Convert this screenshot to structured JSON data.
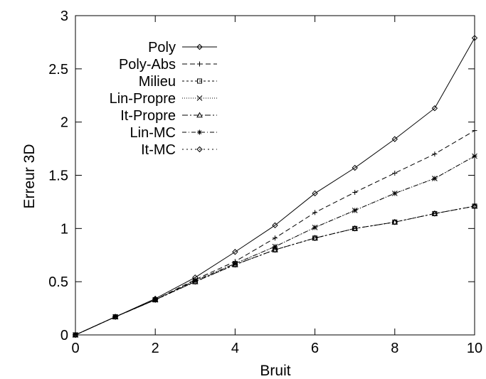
{
  "chart_data": {
    "type": "line",
    "title": "",
    "xlabel": "Bruit",
    "ylabel": "Erreur 3D",
    "xlim": [
      0,
      10
    ],
    "ylim": [
      0,
      3
    ],
    "xticks": [
      "0",
      "2",
      "4",
      "6",
      "8",
      "10"
    ],
    "yticks": [
      "0",
      "0.5",
      "1",
      "1.5",
      "2",
      "2.5",
      "3"
    ],
    "grid": false,
    "legend_position": "top-left",
    "x": [
      0,
      1,
      2,
      3,
      4,
      5,
      6,
      7,
      8,
      9,
      10
    ],
    "series": [
      {
        "name": "Poly",
        "marker": "diamond",
        "dash": "",
        "values": [
          0,
          0.17,
          0.34,
          0.54,
          0.78,
          1.03,
          1.33,
          1.57,
          1.84,
          2.13,
          2.79
        ]
      },
      {
        "name": "Poly-Abs",
        "marker": "plus",
        "dash": "7 4",
        "values": [
          0,
          0.17,
          0.33,
          0.52,
          0.69,
          0.91,
          1.15,
          1.34,
          1.52,
          1.7,
          1.92
        ]
      },
      {
        "name": "Milieu",
        "marker": "square",
        "dash": "3 3",
        "values": [
          0,
          0.17,
          0.33,
          0.5,
          0.66,
          0.8,
          0.91,
          1.0,
          1.06,
          1.14,
          1.21
        ]
      },
      {
        "name": "Lin-Propre",
        "marker": "cross",
        "dash": "1 2",
        "values": [
          0,
          0.17,
          0.33,
          0.51,
          0.67,
          0.83,
          1.01,
          1.17,
          1.33,
          1.47,
          1.68
        ]
      },
      {
        "name": "It-Propre",
        "marker": "triangle",
        "dash": "8 3 2 3",
        "values": [
          0,
          0.17,
          0.33,
          0.5,
          0.66,
          0.8,
          0.91,
          1.0,
          1.06,
          1.14,
          1.21
        ]
      },
      {
        "name": "Lin-MC",
        "marker": "star",
        "dash": "6 3 1 3",
        "values": [
          0,
          0.17,
          0.33,
          0.51,
          0.67,
          0.83,
          1.01,
          1.17,
          1.33,
          1.47,
          1.68
        ]
      },
      {
        "name": "It-MC",
        "marker": "diamond",
        "dash": "2 4",
        "values": [
          0,
          0.17,
          0.33,
          0.5,
          0.66,
          0.8,
          0.91,
          1.0,
          1.06,
          1.14,
          1.21
        ]
      }
    ]
  }
}
